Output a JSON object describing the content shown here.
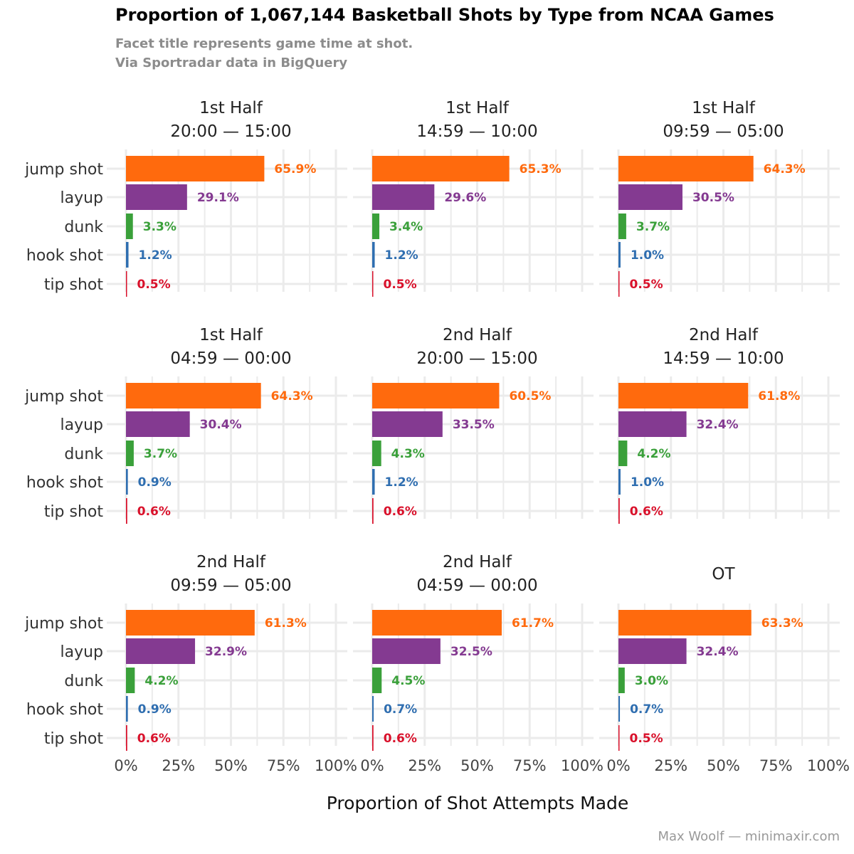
{
  "title": "Proportion of 1,067,144 Basketball Shots by Type from NCAA Games",
  "subtitle_lines": [
    "Facet title represents game time at shot.",
    "Via Sportradar data in BigQuery"
  ],
  "xlabel": "Proportion of Shot Attempts Made",
  "caption": "Max Woolf — minimaxir.com",
  "colors": {
    "jump shot": "#ff6a0d",
    "layup": "#843a91",
    "dunk": "#3aa03a",
    "hook shot": "#2f6eb0",
    "tip shot": "#d9112b"
  },
  "chart_data": {
    "type": "bar",
    "orientation": "horizontal",
    "categories": [
      "jump shot",
      "layup",
      "dunk",
      "hook shot",
      "tip shot"
    ],
    "xlim": [
      0,
      100
    ],
    "x_ticks": [
      "0%",
      "25%",
      "50%",
      "75%",
      "100%"
    ],
    "grid": true,
    "facets": [
      {
        "title_lines": [
          "1st Half",
          "20:00 — 15:00"
        ],
        "values": [
          65.9,
          29.1,
          3.3,
          1.2,
          0.5
        ],
        "labels": [
          "65.9%",
          "29.1%",
          "3.3%",
          "1.2%",
          "0.5%"
        ]
      },
      {
        "title_lines": [
          "1st Half",
          "14:59 — 10:00"
        ],
        "values": [
          65.3,
          29.6,
          3.4,
          1.2,
          0.5
        ],
        "labels": [
          "65.3%",
          "29.6%",
          "3.4%",
          "1.2%",
          "0.5%"
        ]
      },
      {
        "title_lines": [
          "1st Half",
          "09:59 — 05:00"
        ],
        "values": [
          64.3,
          30.5,
          3.7,
          1.0,
          0.5
        ],
        "labels": [
          "64.3%",
          "30.5%",
          "3.7%",
          "1.0%",
          "0.5%"
        ]
      },
      {
        "title_lines": [
          "1st Half",
          "04:59 — 00:00"
        ],
        "values": [
          64.3,
          30.4,
          3.7,
          0.9,
          0.6
        ],
        "labels": [
          "64.3%",
          "30.4%",
          "3.7%",
          "0.9%",
          "0.6%"
        ]
      },
      {
        "title_lines": [
          "2nd Half",
          "20:00 — 15:00"
        ],
        "values": [
          60.5,
          33.5,
          4.3,
          1.2,
          0.6
        ],
        "labels": [
          "60.5%",
          "33.5%",
          "4.3%",
          "1.2%",
          "0.6%"
        ]
      },
      {
        "title_lines": [
          "2nd Half",
          "14:59 — 10:00"
        ],
        "values": [
          61.8,
          32.4,
          4.2,
          1.0,
          0.6
        ],
        "labels": [
          "61.8%",
          "32.4%",
          "4.2%",
          "1.0%",
          "0.6%"
        ]
      },
      {
        "title_lines": [
          "2nd Half",
          "09:59 — 05:00"
        ],
        "values": [
          61.3,
          32.9,
          4.2,
          0.9,
          0.6
        ],
        "labels": [
          "61.3%",
          "32.9%",
          "4.2%",
          "0.9%",
          "0.6%"
        ]
      },
      {
        "title_lines": [
          "2nd Half",
          "04:59 — 00:00"
        ],
        "values": [
          61.7,
          32.5,
          4.5,
          0.7,
          0.6
        ],
        "labels": [
          "61.7%",
          "32.5%",
          "4.5%",
          "0.7%",
          "0.6%"
        ]
      },
      {
        "title_lines": [
          "OT"
        ],
        "values": [
          63.3,
          32.4,
          3.0,
          0.7,
          0.5
        ],
        "labels": [
          "63.3%",
          "32.4%",
          "3.0%",
          "0.7%",
          "0.5%"
        ]
      }
    ]
  }
}
